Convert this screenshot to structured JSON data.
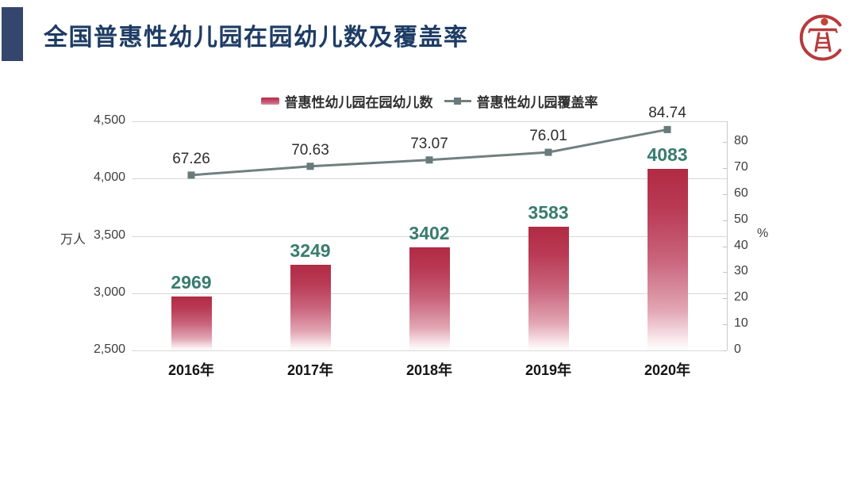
{
  "header": {
    "title": "全国普惠性幼儿园在园幼儿数及覆盖率",
    "logo_icon": "education-seal-icon"
  },
  "legend": {
    "items": [
      {
        "label": "普惠性幼儿园在园幼儿数",
        "marker": "bar-swatch"
      },
      {
        "label": "普惠性幼儿园覆盖率",
        "marker": "line-swatch"
      }
    ]
  },
  "chart_data": {
    "type": "bar+line combo",
    "categories": [
      "2016年",
      "2017年",
      "2018年",
      "2019年",
      "2020年"
    ],
    "series": [
      {
        "name": "普惠性幼儿园在园幼儿数",
        "type": "bar",
        "axis": "left",
        "values": [
          2969,
          3249,
          3402,
          3583,
          4083
        ]
      },
      {
        "name": "普惠性幼儿园覆盖率",
        "type": "line",
        "axis": "right",
        "values": [
          67.26,
          70.63,
          73.07,
          76.01,
          84.74
        ]
      }
    ],
    "left_axis": {
      "unit_label": "万人",
      "min": 2500,
      "max": 4500,
      "step": 500,
      "tick_values": [
        4500,
        4000,
        3500,
        3000,
        2500
      ],
      "tick_labels": [
        "4,500",
        "4,000",
        "3,500",
        "3,000",
        "2,500"
      ]
    },
    "right_axis": {
      "unit_label": "%",
      "min": 0,
      "max": 80,
      "step": 10,
      "tick_values": [
        80,
        70,
        60,
        50,
        40,
        30,
        20,
        10,
        0
      ],
      "tick_labels": [
        "80",
        "70",
        "60",
        "50",
        "40",
        "30",
        "20",
        "10",
        "0"
      ]
    },
    "grid": "horizontal gridlines at each left-axis step",
    "legend_position": "top-center",
    "colors": {
      "bar_gradient_top": "#b12b44",
      "bar_gradient_bottom": "#ffffff",
      "bar_value_label": "#397c6f",
      "line": "#70807f",
      "line_marker": "#697a7b",
      "line_value_label": "#2d2d2d",
      "grid": "#d8d8d8",
      "title": "#1e3c64",
      "accent_block": "#34466e",
      "logo_red": "#b73b3c"
    }
  }
}
